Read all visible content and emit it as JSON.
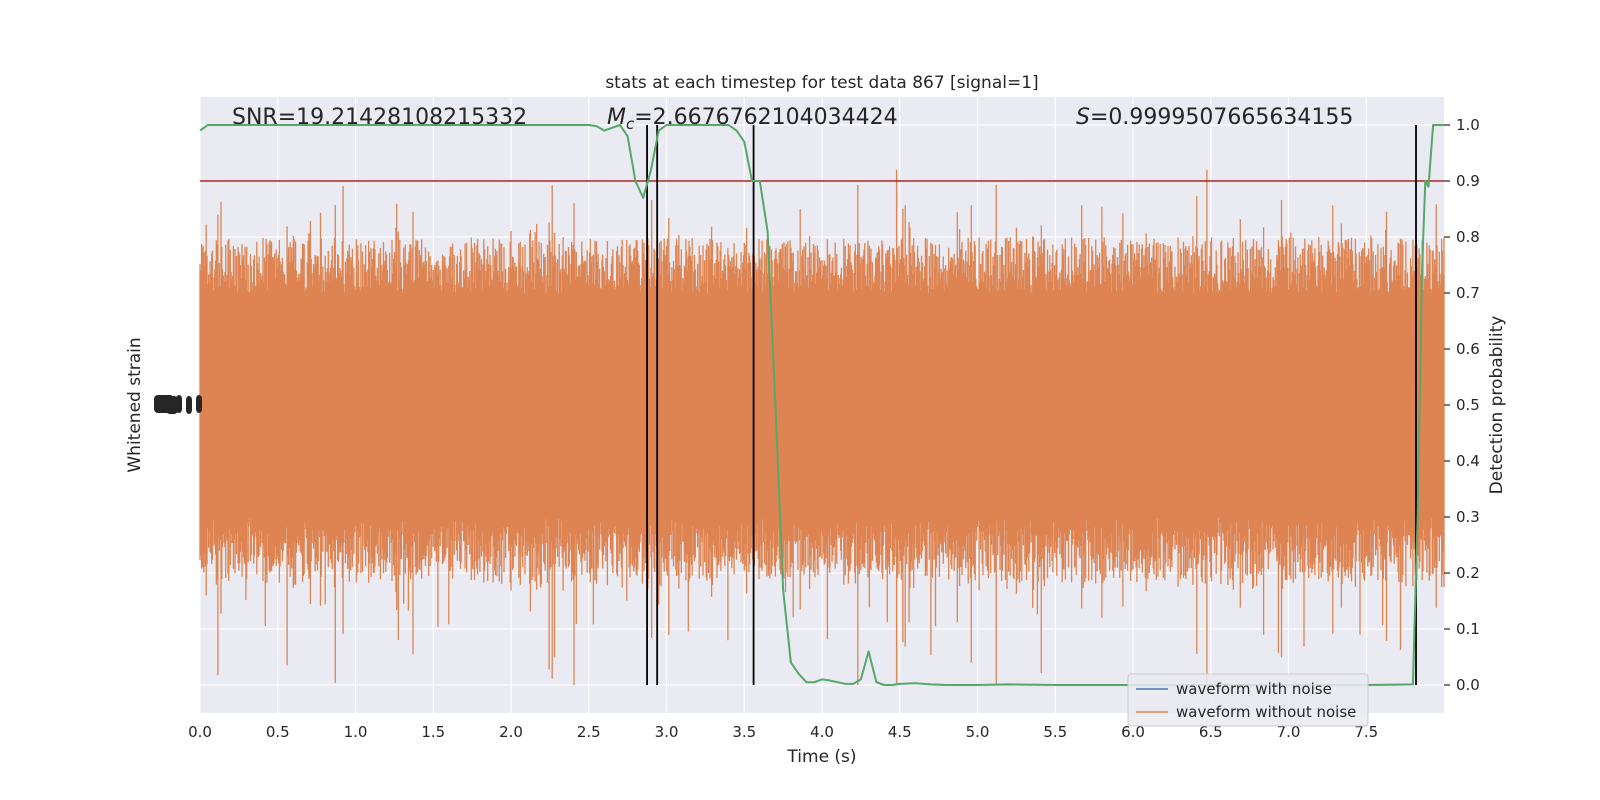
{
  "chart_data": {
    "type": "line",
    "title": "stats at each timestep for test data 867 [signal=1]",
    "xlabel": "Time (s)",
    "ylabel_left": "Whitened strain",
    "ylabel_right": "Detection probability",
    "xlim": [
      0.0,
      8.0
    ],
    "xticks": [
      0.0,
      0.5,
      1.0,
      1.5,
      2.0,
      2.5,
      3.0,
      3.5,
      4.0,
      4.5,
      5.0,
      5.5,
      6.0,
      6.5,
      7.0,
      7.5
    ],
    "xtick_labels": [
      "0.0",
      "0.5",
      "1.0",
      "1.5",
      "2.0",
      "2.5",
      "3.0",
      "3.5",
      "4.0",
      "4.5",
      "5.0",
      "5.5",
      "6.0",
      "6.5",
      "7.0",
      "7.5"
    ],
    "right_ylim": [
      -0.05,
      1.05
    ],
    "right_yticks": [
      0.0,
      0.1,
      0.2,
      0.3,
      0.4,
      0.5,
      0.6,
      0.7,
      0.8,
      0.9,
      1.0
    ],
    "right_ytick_labels": [
      "0.0",
      "0.1",
      "0.2",
      "0.3",
      "0.4",
      "0.5",
      "0.6",
      "0.7",
      "0.8",
      "0.9",
      "1.0"
    ],
    "grid": true,
    "threshold": 0.9,
    "annotations": {
      "snr": "SNR=19.21428108215332",
      "mc": "=2.6676762104034424",
      "mc_symbol": "M",
      "mc_sub": "c",
      "s": "=0.9999507665634155",
      "s_symbol": "S"
    },
    "vertical_lines_x": [
      2.875,
      2.94,
      3.56,
      7.82
    ],
    "legend": {
      "position": "lower right",
      "entries": [
        {
          "name": "waveform with noise",
          "color": "#4c72b0"
        },
        {
          "name": "waveform without noise",
          "color": "#dd8452"
        }
      ]
    },
    "detection_probability": {
      "name": "Detection probability",
      "color": "#55a868",
      "x": [
        0.0,
        0.05,
        0.1,
        0.5,
        1.0,
        1.5,
        2.0,
        2.4,
        2.5,
        2.55,
        2.6,
        2.65,
        2.7,
        2.75,
        2.8,
        2.85,
        2.9,
        2.95,
        3.0,
        3.05,
        3.1,
        3.15,
        3.2,
        3.3,
        3.4,
        3.45,
        3.5,
        3.55,
        3.6,
        3.65,
        3.7,
        3.75,
        3.8,
        3.85,
        3.9,
        3.95,
        4.0,
        4.05,
        4.1,
        4.15,
        4.2,
        4.25,
        4.3,
        4.35,
        4.4,
        4.45,
        4.5,
        4.6,
        4.7,
        4.8,
        4.9,
        5.0,
        5.2,
        5.5,
        6.0,
        6.5,
        7.0,
        7.5,
        7.8,
        7.83,
        7.86,
        7.88,
        7.9,
        7.93,
        7.96,
        8.0
      ],
      "values": [
        0.99,
        1.0,
        1.0,
        1.0,
        1.0,
        1.0,
        1.0,
        1.0,
        1.0,
        0.998,
        0.99,
        0.995,
        1.0,
        0.98,
        0.9,
        0.87,
        0.92,
        0.99,
        1.0,
        1.0,
        1.0,
        1.0,
        1.0,
        1.0,
        1.0,
        0.99,
        0.97,
        0.9,
        0.9,
        0.81,
        0.5,
        0.17,
        0.04,
        0.02,
        0.005,
        0.005,
        0.01,
        0.008,
        0.005,
        0.002,
        0.002,
        0.01,
        0.06,
        0.005,
        0.0,
        0.0,
        0.002,
        0.003,
        0.001,
        0.0,
        0.0,
        0.0,
        0.001,
        0.0,
        0.0,
        0.0,
        0.0,
        0.0,
        0.001,
        0.3,
        0.75,
        0.9,
        0.89,
        1.0,
        1.0,
        1.0
      ]
    },
    "waveform_without_noise": {
      "name": "waveform without noise",
      "color": "#dd8452",
      "description_values": {
        "center": 0.5,
        "dense_band": [
          0.2,
          0.8
        ],
        "max_peak": 0.92,
        "min_trough": 0.0
      }
    }
  }
}
